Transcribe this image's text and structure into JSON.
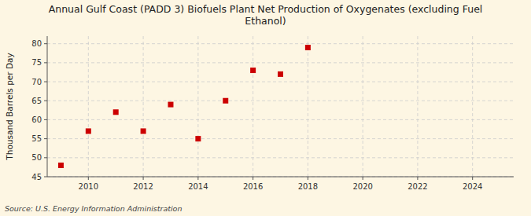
{
  "chart_data": {
    "type": "scatter",
    "title": "Annual Gulf Coast (PADD 3) Biofuels Plant Net Production of Oxygenates (excluding Fuel\nEthanol)",
    "ylabel": "Thousand Barrels per Day",
    "source": "Source: U.S. Energy Information Administration",
    "x": [
      2009,
      2010,
      2011,
      2012,
      2013,
      2014,
      2015,
      2016,
      2017,
      2018
    ],
    "values": [
      48,
      57,
      62,
      57,
      64,
      55,
      65,
      73,
      72,
      79
    ],
    "color": "#cc0000",
    "marker": "square",
    "xlim": [
      2008.5,
      2025.5
    ],
    "ylim": [
      45,
      82
    ],
    "xticks": [
      2010,
      2012,
      2014,
      2016,
      2018,
      2020,
      2022,
      2024
    ],
    "yticks": [
      45,
      50,
      55,
      60,
      65,
      70,
      75,
      80
    ],
    "grid": true
  }
}
